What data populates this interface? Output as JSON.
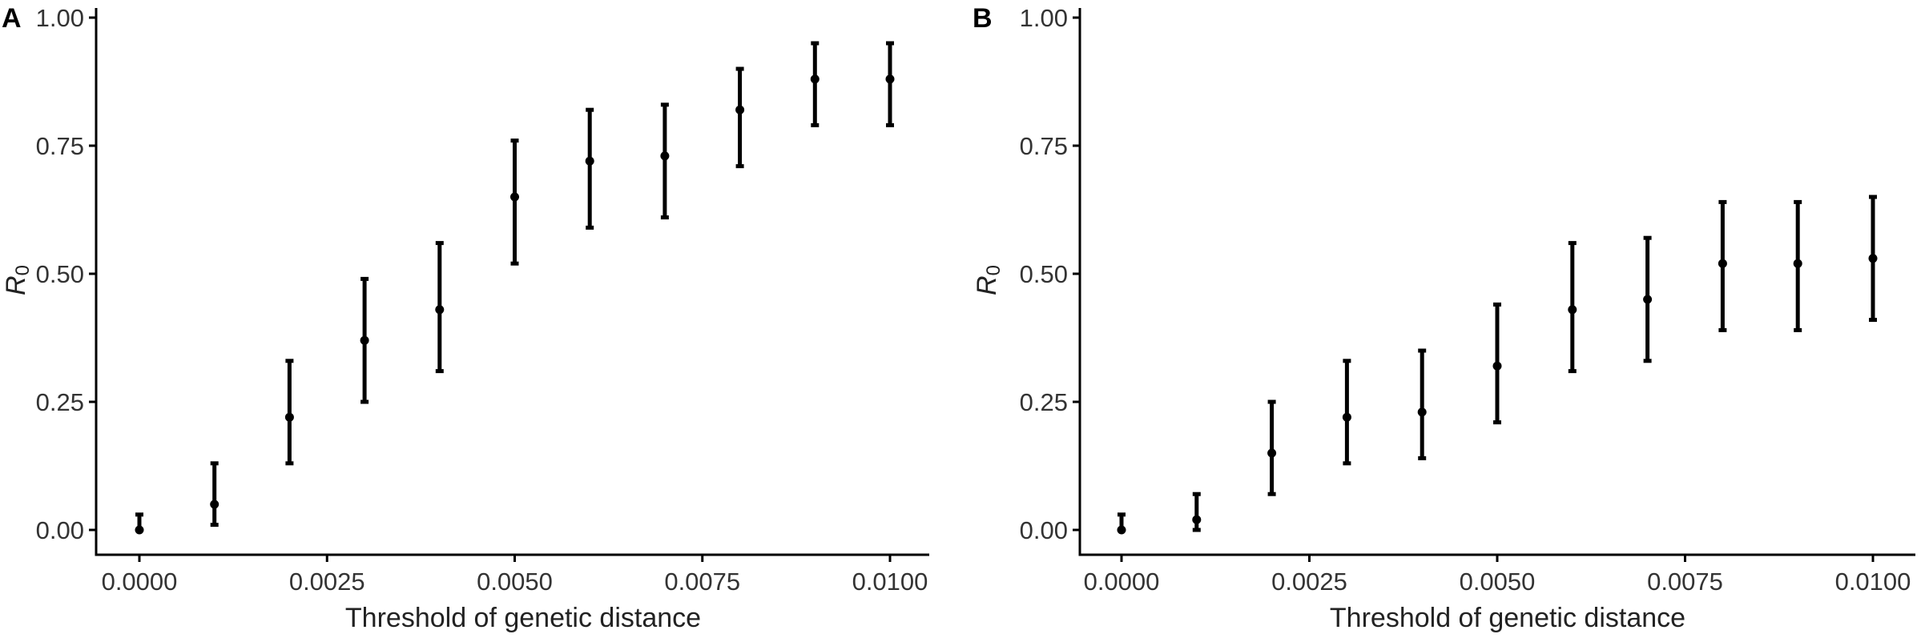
{
  "chart_data": [
    {
      "panel": "A",
      "type": "scatter",
      "error_bars": true,
      "xlabel": "Threshold of genetic distance",
      "ylabel": "R",
      "ylabel_subscript": "0",
      "xlim": [
        0,
        0.01
      ],
      "ylim": [
        0,
        1
      ],
      "xticks": [
        0,
        0.0025,
        0.005,
        0.0075,
        0.01
      ],
      "xtick_labels": [
        "0.0000",
        "0.0025",
        "0.0050",
        "0.0075",
        "0.0100"
      ],
      "yticks": [
        0,
        0.25,
        0.5,
        0.75,
        1.0
      ],
      "ytick_labels": [
        "0.00",
        "0.25",
        "0.50",
        "0.75",
        "1.00"
      ],
      "grid": false,
      "points": [
        {
          "x": 0.0,
          "y": 0.0,
          "lower": 0.0,
          "upper": 0.03
        },
        {
          "x": 0.001,
          "y": 0.05,
          "lower": 0.01,
          "upper": 0.13
        },
        {
          "x": 0.002,
          "y": 0.22,
          "lower": 0.13,
          "upper": 0.33
        },
        {
          "x": 0.003,
          "y": 0.37,
          "lower": 0.25,
          "upper": 0.49
        },
        {
          "x": 0.004,
          "y": 0.43,
          "lower": 0.31,
          "upper": 0.56
        },
        {
          "x": 0.005,
          "y": 0.65,
          "lower": 0.52,
          "upper": 0.76
        },
        {
          "x": 0.006,
          "y": 0.72,
          "lower": 0.59,
          "upper": 0.82
        },
        {
          "x": 0.007,
          "y": 0.73,
          "lower": 0.61,
          "upper": 0.83
        },
        {
          "x": 0.008,
          "y": 0.82,
          "lower": 0.71,
          "upper": 0.9
        },
        {
          "x": 0.009,
          "y": 0.88,
          "lower": 0.79,
          "upper": 0.95
        },
        {
          "x": 0.01,
          "y": 0.88,
          "lower": 0.79,
          "upper": 0.95
        }
      ]
    },
    {
      "panel": "B",
      "type": "scatter",
      "error_bars": true,
      "xlabel": "Threshold of genetic distance",
      "ylabel": "R",
      "ylabel_subscript": "0",
      "xlim": [
        0,
        0.01
      ],
      "ylim": [
        0,
        1
      ],
      "xticks": [
        0,
        0.0025,
        0.005,
        0.0075,
        0.01
      ],
      "xtick_labels": [
        "0.0000",
        "0.0025",
        "0.0050",
        "0.0075",
        "0.0100"
      ],
      "yticks": [
        0,
        0.25,
        0.5,
        0.75,
        1.0
      ],
      "ytick_labels": [
        "0.00",
        "0.25",
        "0.50",
        "0.75",
        "1.00"
      ],
      "grid": false,
      "points": [
        {
          "x": 0.0,
          "y": 0.0,
          "lower": 0.0,
          "upper": 0.03
        },
        {
          "x": 0.001,
          "y": 0.02,
          "lower": 0.0,
          "upper": 0.07
        },
        {
          "x": 0.002,
          "y": 0.15,
          "lower": 0.07,
          "upper": 0.25
        },
        {
          "x": 0.003,
          "y": 0.22,
          "lower": 0.13,
          "upper": 0.33
        },
        {
          "x": 0.004,
          "y": 0.23,
          "lower": 0.14,
          "upper": 0.35
        },
        {
          "x": 0.005,
          "y": 0.32,
          "lower": 0.21,
          "upper": 0.44
        },
        {
          "x": 0.006,
          "y": 0.43,
          "lower": 0.31,
          "upper": 0.56
        },
        {
          "x": 0.007,
          "y": 0.45,
          "lower": 0.33,
          "upper": 0.57
        },
        {
          "x": 0.008,
          "y": 0.52,
          "lower": 0.39,
          "upper": 0.64
        },
        {
          "x": 0.009,
          "y": 0.52,
          "lower": 0.39,
          "upper": 0.64
        },
        {
          "x": 0.01,
          "y": 0.53,
          "lower": 0.41,
          "upper": 0.65
        }
      ]
    }
  ]
}
